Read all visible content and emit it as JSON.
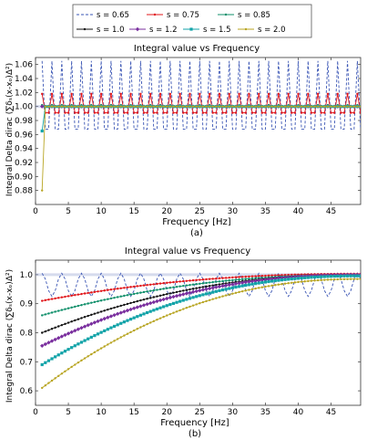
{
  "legend": {
    "items": [
      {
        "label": "s = 0.65",
        "color": "#3a55b4",
        "marker": "none",
        "dash": "3,2"
      },
      {
        "label": "s = 0.75",
        "color": "#e0151a",
        "marker": "dot",
        "dash": ""
      },
      {
        "label": "s = 0.85",
        "color": "#0f8f6a",
        "marker": "dot",
        "dash": ""
      },
      {
        "label": "s = 1.0",
        "color": "#111111",
        "marker": "dot",
        "dash": ""
      },
      {
        "label": "s = 1.2",
        "color": "#7a2f9e",
        "marker": "diamond",
        "dash": ""
      },
      {
        "label": "s = 1.5",
        "color": "#12a3a8",
        "marker": "square",
        "dash": ""
      },
      {
        "label": "s = 2.0",
        "color": "#b8a523",
        "marker": "dot",
        "dash": ""
      }
    ]
  },
  "chart_data": [
    {
      "type": "line",
      "title": "Integral value vs Frequency",
      "xlabel": "Frequency [Hz]",
      "ylabel": "Integral Delta dirac (∑δₛ(x-xₒ)Δ²)",
      "caption": "(a)",
      "xlim": [
        0,
        49.5
      ],
      "ylim": [
        0.86,
        1.07
      ],
      "xticks": [
        0,
        5,
        10,
        15,
        20,
        25,
        30,
        35,
        40,
        45
      ],
      "yticks": [
        0.88,
        0.9,
        0.92,
        0.94,
        0.96,
        0.98,
        1.0,
        1.02,
        1.04,
        1.06
      ],
      "reference_y": 1.0,
      "series": [
        {
          "name": "s = 0.65",
          "pattern": "oscillating",
          "x_start": 1.0,
          "x_step": 0.5,
          "x_end": 49.5,
          "center": 1.0,
          "amplitude": 0.065,
          "period_hz": 1.5
        },
        {
          "name": "s = 0.75",
          "pattern": "oscillating",
          "x_start": 1.0,
          "x_step": 0.5,
          "x_end": 49.5,
          "center": 1.0,
          "amplitude": 0.018,
          "period_hz": 1.5
        },
        {
          "name": "s = 0.85",
          "pattern": "oscillating",
          "x_start": 1.0,
          "x_step": 0.5,
          "x_end": 49.5,
          "center": 1.0,
          "amplitude": 0.002,
          "period_hz": 1.5
        },
        {
          "name": "s = 1.0",
          "pattern": "flat",
          "x_start": 1.0,
          "x_step": 0.5,
          "x_end": 49.5,
          "value": 1.0
        },
        {
          "name": "s = 1.2",
          "pattern": "flat",
          "x_start": 1.0,
          "x_step": 0.5,
          "x_end": 49.5,
          "value": 1.0
        },
        {
          "name": "s = 1.5",
          "pattern": "first_point",
          "x_start": 1.0,
          "x_step": 0.5,
          "x_end": 49.5,
          "value": 1.0,
          "first_value": 0.965
        },
        {
          "name": "s = 2.0",
          "pattern": "first_point",
          "x_start": 1.0,
          "x_step": 0.5,
          "x_end": 49.5,
          "value": 1.0,
          "first_value": 0.88
        }
      ]
    },
    {
      "type": "line",
      "title": "Integral value vs Frequency",
      "xlabel": "Frequency [Hz]",
      "ylabel": "Integral Delta dirac (∑δₛ(x-xₒ)Δ²)",
      "caption": "(b)",
      "xlim": [
        0,
        49.5
      ],
      "ylim": [
        0.55,
        1.05
      ],
      "xticks": [
        0,
        5,
        10,
        15,
        20,
        25,
        30,
        35,
        40,
        45
      ],
      "yticks": [
        0.6,
        0.7,
        0.8,
        0.9,
        1.0
      ],
      "reference_y": 1.0,
      "series": [
        {
          "name": "s = 0.65",
          "pattern": "oscillating",
          "x_start": 1.0,
          "x_step": 0.5,
          "x_end": 49.5,
          "center": 0.965,
          "amplitude": 0.04,
          "period_hz": 3.0
        },
        {
          "name": "s = 0.75",
          "pattern": "converging",
          "x_start": 1.0,
          "x_step": 0.5,
          "x_end": 49.5,
          "start": 0.91,
          "end": 1.003
        },
        {
          "name": "s = 0.85",
          "pattern": "converging",
          "x_start": 1.0,
          "x_step": 0.5,
          "x_end": 49.5,
          "start": 0.86,
          "end": 1.0
        },
        {
          "name": "s = 1.0",
          "pattern": "converging",
          "x_start": 1.0,
          "x_step": 0.5,
          "x_end": 49.5,
          "start": 0.8,
          "end": 1.0
        },
        {
          "name": "s = 1.2",
          "pattern": "converging",
          "x_start": 1.0,
          "x_step": 0.5,
          "x_end": 49.5,
          "start": 0.755,
          "end": 1.0
        },
        {
          "name": "s = 1.5",
          "pattern": "converging",
          "x_start": 1.0,
          "x_step": 0.5,
          "x_end": 49.5,
          "start": 0.69,
          "end": 0.996
        },
        {
          "name": "s = 2.0",
          "pattern": "converging",
          "x_start": 1.0,
          "x_step": 0.5,
          "x_end": 49.5,
          "start": 0.61,
          "end": 0.985
        }
      ]
    }
  ]
}
